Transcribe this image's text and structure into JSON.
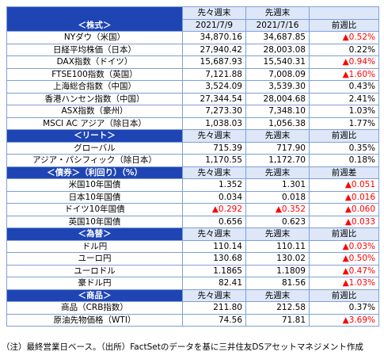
{
  "header": {
    "section": "＜株式＞",
    "prev2_label": "先々週末",
    "prev2_date": "2021/7/9",
    "prev_label": "先週末",
    "prev_date": "2021/7/16",
    "change": "前週比"
  },
  "sections": [
    {
      "rows": [
        [
          "NYダウ（米国）",
          "34,870.16",
          "34,687.85",
          "▲0.52%"
        ],
        [
          "日経平均株価（日本）",
          "27,940.42",
          "28,003.08",
          "0.22%"
        ],
        [
          "DAX指数（ドイツ）",
          "15,687.93",
          "15,540.31",
          "▲0.94%"
        ],
        [
          "FTSE100指数（英国）",
          "7,121.88",
          "7,008.09",
          "▲1.60%"
        ],
        [
          "上海総合指数（中国）",
          "3,524.09",
          "3,539.30",
          "0.43%"
        ],
        [
          "香港ハンセン指数（中国）",
          "27,344.54",
          "28,004.68",
          "2.41%"
        ],
        [
          "ASX指数（豪州）",
          "7,273.30",
          "7,348.10",
          "1.03%"
        ],
        [
          "MSCI AC アジア（除日本）",
          "1,038.03",
          "1,056.38",
          "1.77%"
        ]
      ]
    },
    {
      "title": "＜リート＞",
      "columns": [
        "先々週末",
        "先週末",
        "前週比"
      ],
      "rows": [
        [
          "グローバル",
          "715.39",
          "717.90",
          "0.35%"
        ],
        [
          "アジア・パシフィック（除日本）",
          "1,170.55",
          "1,172.70",
          "0.18%"
        ]
      ]
    },
    {
      "title": "＜債券＞（利回り）（%）",
      "columns": [
        "先々週末",
        "先週末",
        "前週差"
      ],
      "rows": [
        [
          "米国10年国債",
          "1.352",
          "1.301",
          "▲0.051"
        ],
        [
          "日本10年国債",
          "0.034",
          "0.018",
          "▲0.016"
        ],
        [
          "ドイツ10年国債",
          "▲0.292",
          "▲0.352",
          "▲0.060"
        ],
        [
          "英国10年国債",
          "0.656",
          "0.623",
          "▲0.033"
        ]
      ]
    },
    {
      "title": "＜為替＞",
      "columns": [
        "先々週末",
        "先週末",
        "前週比"
      ],
      "rows": [
        [
          "ドル円",
          "110.14",
          "110.11",
          "▲0.03%"
        ],
        [
          "ユーロ円",
          "130.68",
          "130.02",
          "▲0.50%"
        ],
        [
          "ユーロドル",
          "1.1865",
          "1.1809",
          "▲0.47%"
        ],
        [
          "豪ドル円",
          "82.41",
          "81.56",
          "▲1.03%"
        ]
      ]
    },
    {
      "title": "＜商品＞",
      "columns": [
        "先々週末",
        "先週末",
        "前週比"
      ],
      "rows": [
        [
          "商品（CRB指数）",
          "211.80",
          "212.58",
          "0.37%"
        ],
        [
          "原油先物価格（WTI）",
          "74.56",
          "71.81",
          "▲3.69%"
        ]
      ]
    }
  ],
  "note": "（注）最終営業日ベース。（出所）FactSetのデータを基に三井住友DSアセットマネジメント作成"
}
